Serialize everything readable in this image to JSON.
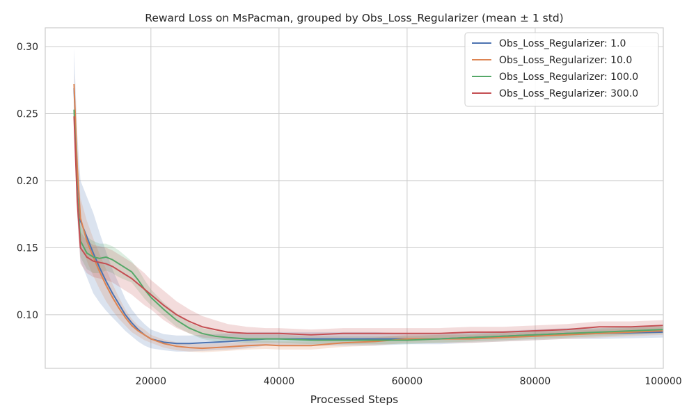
{
  "chart_data": {
    "type": "line",
    "title": "Reward Loss on MsPacman, grouped by Obs_Loss_Regularizer (mean ± 1 std)",
    "xlabel": "Processed Steps",
    "ylabel": "",
    "xlim": [
      3500,
      100000
    ],
    "ylim": [
      0.06,
      0.314
    ],
    "xticks": [
      20000,
      40000,
      60000,
      80000,
      100000
    ],
    "xtick_labels": [
      "20000",
      "40000",
      "60000",
      "80000",
      "100000"
    ],
    "yticks": [
      0.1,
      0.15,
      0.2,
      0.25,
      0.3
    ],
    "ytick_labels": [
      "0.10",
      "0.15",
      "0.20",
      "0.25",
      "0.30"
    ],
    "grid": true,
    "legend_position": "top-right",
    "x": [
      8000,
      8500,
      9000,
      10000,
      11000,
      12000,
      13000,
      14000,
      15000,
      16000,
      17000,
      18000,
      19000,
      20000,
      22000,
      24000,
      26000,
      28000,
      30000,
      32000,
      35000,
      38000,
      40000,
      45000,
      50000,
      55000,
      60000,
      65000,
      70000,
      75000,
      80000,
      85000,
      90000,
      95000,
      100000
    ],
    "series": [
      {
        "name": "Obs_Loss_Regularizer: 1.0",
        "color": "#4c72b0",
        "values": [
          0.269,
          0.205,
          0.17,
          0.158,
          0.146,
          0.135,
          0.125,
          0.116,
          0.108,
          0.1,
          0.094,
          0.089,
          0.085,
          0.082,
          0.0795,
          0.0785,
          0.0785,
          0.079,
          0.0795,
          0.08,
          0.081,
          0.082,
          0.082,
          0.082,
          0.082,
          0.082,
          0.082,
          0.082,
          0.083,
          0.084,
          0.085,
          0.086,
          0.086,
          0.0865,
          0.087
        ],
        "std": [
          0.03,
          0.03,
          0.03,
          0.03,
          0.03,
          0.026,
          0.022,
          0.018,
          0.015,
          0.012,
          0.01,
          0.009,
          0.008,
          0.007,
          0.006,
          0.006,
          0.006,
          0.006,
          0.006,
          0.006,
          0.006,
          0.005,
          0.005,
          0.005,
          0.005,
          0.005,
          0.004,
          0.004,
          0.004,
          0.004,
          0.004,
          0.004,
          0.004,
          0.004,
          0.004
        ]
      },
      {
        "name": "Obs_Loss_Regularizer: 10.0",
        "color": "#dd8452",
        "values": [
          0.272,
          0.21,
          0.172,
          0.155,
          0.143,
          0.132,
          0.122,
          0.113,
          0.105,
          0.098,
          0.092,
          0.088,
          0.085,
          0.082,
          0.0785,
          0.0765,
          0.0755,
          0.075,
          0.0755,
          0.076,
          0.077,
          0.0775,
          0.077,
          0.077,
          0.079,
          0.08,
          0.082,
          0.082,
          0.082,
          0.083,
          0.084,
          0.085,
          0.086,
          0.087,
          0.088
        ],
        "std": [
          0.008,
          0.012,
          0.015,
          0.015,
          0.014,
          0.013,
          0.012,
          0.01,
          0.008,
          0.006,
          0.005,
          0.004,
          0.004,
          0.003,
          0.003,
          0.003,
          0.003,
          0.003,
          0.003,
          0.003,
          0.003,
          0.003,
          0.003,
          0.003,
          0.003,
          0.003,
          0.003,
          0.003,
          0.003,
          0.003,
          0.003,
          0.003,
          0.003,
          0.003,
          0.003
        ]
      },
      {
        "name": "Obs_Loss_Regularizer: 100.0",
        "color": "#55a868",
        "values": [
          0.253,
          0.19,
          0.155,
          0.146,
          0.143,
          0.142,
          0.143,
          0.141,
          0.138,
          0.135,
          0.132,
          0.126,
          0.119,
          0.113,
          0.104,
          0.096,
          0.09,
          0.086,
          0.084,
          0.083,
          0.082,
          0.082,
          0.082,
          0.081,
          0.081,
          0.081,
          0.081,
          0.082,
          0.083,
          0.084,
          0.085,
          0.086,
          0.087,
          0.088,
          0.089
        ],
        "std": [
          0.004,
          0.008,
          0.012,
          0.012,
          0.012,
          0.011,
          0.01,
          0.01,
          0.01,
          0.009,
          0.008,
          0.008,
          0.007,
          0.006,
          0.005,
          0.005,
          0.004,
          0.004,
          0.004,
          0.003,
          0.003,
          0.003,
          0.003,
          0.003,
          0.003,
          0.003,
          0.003,
          0.003,
          0.003,
          0.003,
          0.003,
          0.003,
          0.003,
          0.003,
          0.003
        ]
      },
      {
        "name": "Obs_Loss_Regularizer: 300.0",
        "color": "#c44e52",
        "values": [
          0.248,
          0.185,
          0.15,
          0.143,
          0.14,
          0.139,
          0.138,
          0.136,
          0.133,
          0.13,
          0.127,
          0.123,
          0.119,
          0.115,
          0.107,
          0.1,
          0.095,
          0.091,
          0.089,
          0.087,
          0.086,
          0.086,
          0.086,
          0.085,
          0.086,
          0.086,
          0.086,
          0.086,
          0.087,
          0.087,
          0.088,
          0.089,
          0.091,
          0.091,
          0.092
        ],
        "std": [
          0.012,
          0.012,
          0.012,
          0.012,
          0.012,
          0.012,
          0.012,
          0.012,
          0.012,
          0.012,
          0.012,
          0.012,
          0.012,
          0.011,
          0.011,
          0.01,
          0.009,
          0.008,
          0.007,
          0.006,
          0.005,
          0.004,
          0.004,
          0.004,
          0.004,
          0.004,
          0.004,
          0.004,
          0.004,
          0.004,
          0.004,
          0.004,
          0.004,
          0.004,
          0.004
        ]
      }
    ]
  }
}
